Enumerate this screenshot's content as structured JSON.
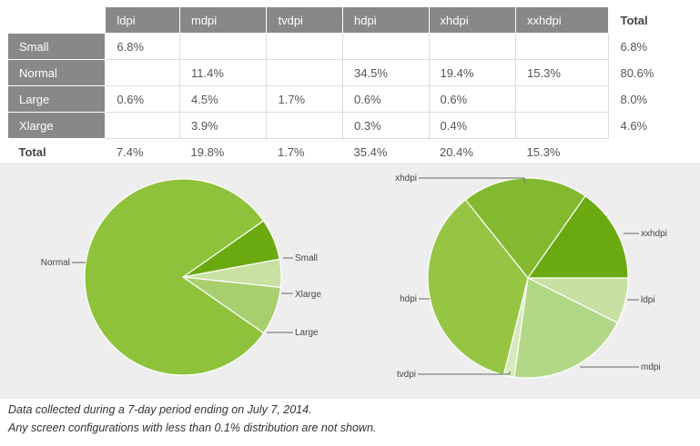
{
  "chart_data": [
    {
      "type": "table",
      "columns": [
        "",
        "ldpi",
        "mdpi",
        "tvdpi",
        "hdpi",
        "xhdpi",
        "xxhdpi",
        "Total"
      ],
      "rows": [
        {
          "label": "Small",
          "cells": [
            "6.8%",
            "",
            "",
            "",
            "",
            "",
            "6.8%"
          ]
        },
        {
          "label": "Normal",
          "cells": [
            "",
            "11.4%",
            "",
            "34.5%",
            "19.4%",
            "15.3%",
            "80.6%"
          ]
        },
        {
          "label": "Large",
          "cells": [
            "0.6%",
            "4.5%",
            "1.7%",
            "0.6%",
            "0.6%",
            "",
            "8.0%"
          ]
        },
        {
          "label": "Xlarge",
          "cells": [
            "",
            "3.9%",
            "",
            "0.3%",
            "0.4%",
            "",
            "4.6%"
          ]
        }
      ],
      "total_row": {
        "label": "Total",
        "cells": [
          "7.4%",
          "19.8%",
          "1.7%",
          "35.4%",
          "20.4%",
          "15.3%",
          ""
        ]
      }
    },
    {
      "type": "pie",
      "categories": [
        "Small",
        "Normal",
        "Large",
        "Xlarge"
      ],
      "values": [
        6.8,
        80.6,
        8.0,
        4.6
      ],
      "colors": [
        "#6aaa10",
        "#8ec23b",
        "#a8cf6e",
        "#c8e1a3"
      ],
      "labels": [
        "Small",
        "Normal",
        "Xlarge",
        "Large"
      ]
    },
    {
      "type": "pie",
      "categories": [
        "ldpi",
        "mdpi",
        "tvdpi",
        "hdpi",
        "xhdpi",
        "xxhdpi"
      ],
      "values": [
        7.4,
        19.8,
        1.7,
        35.4,
        20.4,
        15.3
      ],
      "colors": [
        "#c5e0a0",
        "#b2d786",
        "#d6eabc",
        "#96c544",
        "#82b92e",
        "#6aaa10"
      ],
      "labels": [
        "xhdpi",
        "xxhdpi",
        "hdpi",
        "ldpi",
        "tvdpi",
        "mdpi"
      ]
    }
  ],
  "footnote": {
    "line1": "Data collected during a 7-day period ending on July 7, 2014.",
    "line2": "Any screen configurations with less than 0.1% distribution are not shown."
  }
}
